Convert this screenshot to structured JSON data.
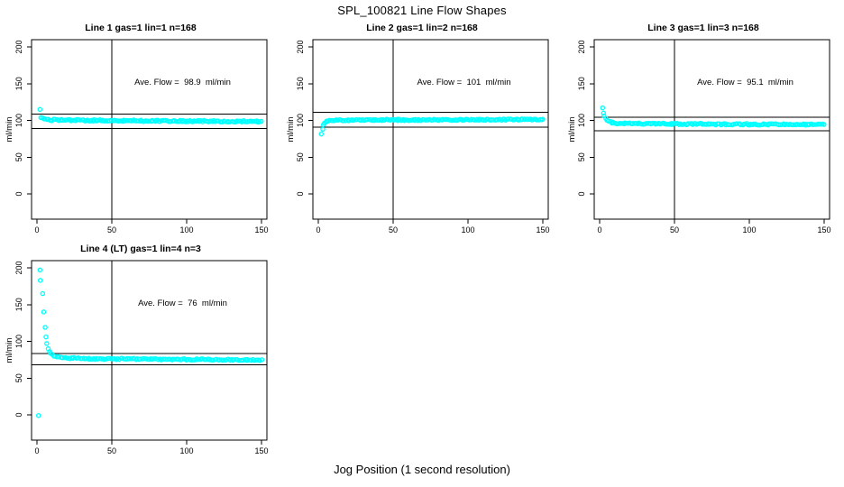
{
  "page": {
    "main_title": "SPL_100821  Line Flow Shapes",
    "x_axis_label": "Jog Position (1 second resolution)",
    "background": "#ffffff",
    "point_color": "#00ffff",
    "axis_color": "#000000"
  },
  "chart_data": [
    {
      "type": "scatter",
      "title": "Line 1 gas=1 lin=1 n=168",
      "annotation": "Ave. Flow =  98.9  ml/min",
      "ave_flow_ml_min": 98.9,
      "n": 168,
      "ylabel": "ml/min",
      "x_ticks": [
        0,
        50,
        100,
        150
      ],
      "y_ticks": [
        0,
        50,
        100,
        150,
        200
      ],
      "xlim": [
        -4,
        154
      ],
      "ylim": [
        -34,
        210
      ],
      "grid": false,
      "vline_x": 50,
      "hlines": [
        108.8,
        89.0
      ],
      "transient_points": [
        [
          2,
          115
        ]
      ],
      "band": {
        "path": [
          [
            3,
            104.5
          ],
          [
            4,
            102.3
          ],
          [
            6,
            100.8
          ],
          [
            30,
            100.1
          ],
          [
            150,
            98.4
          ]
        ],
        "count": 164,
        "jitter": 1.0
      }
    },
    {
      "type": "scatter",
      "title": "Line 2 gas=1 lin=2 n=168",
      "annotation": "Ave. Flow =  101  ml/min",
      "ave_flow_ml_min": 101,
      "n": 168,
      "ylabel": "ml/min",
      "x_ticks": [
        0,
        50,
        100,
        150
      ],
      "y_ticks": [
        0,
        50,
        100,
        150,
        200
      ],
      "xlim": [
        -4,
        154
      ],
      "ylim": [
        -34,
        210
      ],
      "grid": false,
      "vline_x": 50,
      "hlines": [
        111.1,
        90.9
      ],
      "transient_points": [
        [
          2,
          81.5
        ],
        [
          3,
          88
        ]
      ],
      "band": {
        "path": [
          [
            3.2,
            93
          ],
          [
            4,
            96.5
          ],
          [
            5,
            98.5
          ],
          [
            7,
            99.8
          ],
          [
            20,
            100.4
          ],
          [
            80,
            100.7
          ],
          [
            150,
            101.3
          ]
        ],
        "count": 162,
        "jitter": 0.9
      }
    },
    {
      "type": "scatter",
      "title": "Line 3 gas=1 lin=3 n=168",
      "annotation": "Ave. Flow =  95.1  ml/min",
      "ave_flow_ml_min": 95.1,
      "n": 168,
      "ylabel": "ml/min",
      "x_ticks": [
        0,
        50,
        100,
        150
      ],
      "y_ticks": [
        0,
        50,
        100,
        150,
        200
      ],
      "xlim": [
        -4,
        154
      ],
      "ylim": [
        -34,
        210
      ],
      "grid": false,
      "vline_x": 50,
      "hlines": [
        104.6,
        85.6
      ],
      "transient_points": [
        [
          2,
          117
        ],
        [
          2.6,
          110
        ]
      ],
      "band": {
        "path": [
          [
            3.2,
            107
          ],
          [
            4,
            103.5
          ],
          [
            5,
            100.5
          ],
          [
            6,
            99
          ],
          [
            8,
            97.2
          ],
          [
            12,
            95.8
          ],
          [
            60,
            95
          ],
          [
            150,
            94.2
          ]
        ],
        "count": 160,
        "jitter": 1.0
      }
    },
    {
      "type": "scatter",
      "title": "Line 4 (LT) gas=1 lin=4 n=3",
      "annotation": "Ave. Flow =  76  ml/min",
      "ave_flow_ml_min": 76,
      "n": 3,
      "ylabel": "ml/min",
      "x_ticks": [
        0,
        50,
        100,
        150
      ],
      "y_ticks": [
        0,
        50,
        100,
        150,
        200
      ],
      "xlim": [
        -4,
        154
      ],
      "ylim": [
        -34,
        210
      ],
      "grid": false,
      "vline_x": 50,
      "hlines": [
        83.6,
        68.4
      ],
      "transient_points": [
        [
          1,
          -1
        ],
        [
          2,
          197
        ],
        [
          2.2,
          183
        ],
        [
          3.8,
          165
        ],
        [
          4.5,
          140
        ],
        [
          5.5,
          119
        ],
        [
          6,
          106
        ],
        [
          6.5,
          97
        ],
        [
          7.5,
          90
        ],
        [
          8.5,
          86
        ]
      ],
      "band": {
        "path": [
          [
            9,
            83.5
          ],
          [
            12,
            79.5
          ],
          [
            18,
            77.5
          ],
          [
            40,
            76.3
          ],
          [
            90,
            75.6
          ],
          [
            150,
            74.6
          ]
        ],
        "count": 142,
        "jitter": 0.9
      }
    }
  ]
}
